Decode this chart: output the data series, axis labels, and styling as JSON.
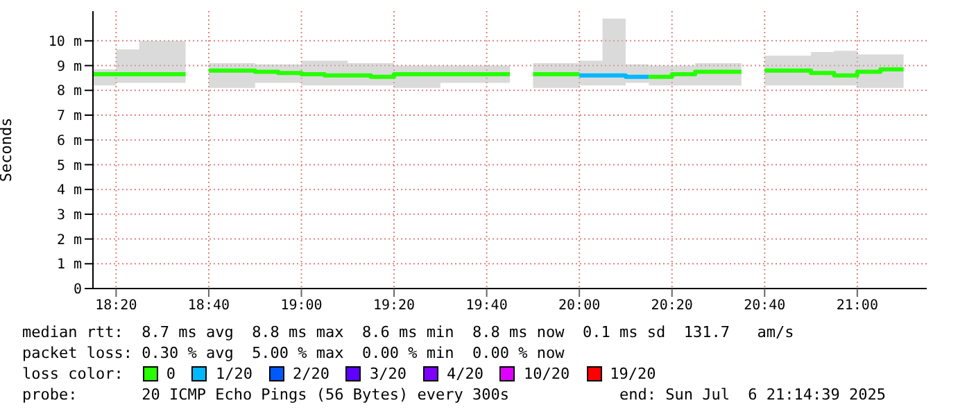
{
  "chart_data": {
    "type": "line",
    "ylabel": "Seconds",
    "legend_title": "loss color:",
    "legend": "bottom",
    "grid": true,
    "xlim": [
      "2025-07-06T18:15",
      "2025-07-06T21:15"
    ],
    "xticks": [
      {
        "value": "2025-07-06T18:20",
        "label": "18:20"
      },
      {
        "value": "2025-07-06T18:40",
        "label": "18:40"
      },
      {
        "value": "2025-07-06T19:00",
        "label": "19:00"
      },
      {
        "value": "2025-07-06T19:20",
        "label": "19:20"
      },
      {
        "value": "2025-07-06T19:40",
        "label": "19:40"
      },
      {
        "value": "2025-07-06T20:00",
        "label": "20:00"
      },
      {
        "value": "2025-07-06T20:20",
        "label": "20:20"
      },
      {
        "value": "2025-07-06T20:40",
        "label": "20:40"
      },
      {
        "value": "2025-07-06T21:00",
        "label": "21:00"
      }
    ],
    "ylim": [
      0,
      11.2
    ],
    "yticks": [
      0,
      {
        "value": 1,
        "label": "1 m"
      },
      {
        "value": 2,
        "label": "2 m"
      },
      {
        "value": 3,
        "label": "3 m"
      },
      {
        "value": 4,
        "label": "4 m"
      },
      {
        "value": 5,
        "label": "5 m"
      },
      {
        "value": 6,
        "label": "6 m"
      },
      {
        "value": 7,
        "label": "7 m"
      },
      {
        "value": 8,
        "label": "8 m"
      },
      {
        "value": 9,
        "label": "9 m"
      },
      {
        "value": 10,
        "label": "10 m"
      }
    ],
    "series": [
      {
        "name": "0",
        "color": "#26ff00",
        "x": [
          "2025-07-06T18:15",
          "2025-07-06T18:20",
          "2025-07-06T18:20",
          "2025-07-06T18:25",
          "2025-07-06T18:25",
          "2025-07-06T18:35"
        ],
        "values": [
          8.65,
          8.65,
          8.65,
          8.65,
          8.65,
          8.65
        ],
        "lower": [
          8.2,
          8.2,
          8.3,
          8.3,
          8.3,
          8.3
        ],
        "upper": [
          8.85,
          8.85,
          9.65,
          9.65,
          10.0,
          10.0
        ]
      },
      {
        "name": "1/20",
        "color": "#00b8ff",
        "x": [
          "2025-07-06T20:00",
          "2025-07-06T20:05",
          "2025-07-06T20:05",
          "2025-07-06T20:10",
          "2025-07-06T20:10",
          "2025-07-06T20:15"
        ],
        "values": [
          8.6,
          8.6,
          8.6,
          8.6,
          8.55,
          8.55
        ],
        "lower": [
          8.2,
          8.2,
          8.2,
          8.2,
          8.3,
          8.3
        ],
        "upper": [
          9.2,
          9.2,
          10.9,
          10.9,
          9.05,
          9.05
        ]
      },
      {
        "name": "2/20",
        "color": "#0059ff"
      },
      {
        "name": "3/20",
        "color": "#5e00ff"
      },
      {
        "name": "4/20",
        "color": "#7e00ff"
      },
      {
        "name": "10/20",
        "color": "#dd00ff"
      },
      {
        "name": "19/20",
        "color": "#ff0000"
      },
      {
        "color": "#26ff00",
        "x": [
          "2025-07-06T18:40",
          "2025-07-06T18:50",
          "2025-07-06T18:50",
          "2025-07-06T18:55",
          "2025-07-06T18:55",
          "2025-07-06T19:00",
          "2025-07-06T19:00",
          "2025-07-06T19:05",
          "2025-07-06T19:05",
          "2025-07-06T19:10",
          "2025-07-06T19:10",
          "2025-07-06T19:15",
          "2025-07-06T19:15",
          "2025-07-06T19:20",
          "2025-07-06T19:20",
          "2025-07-06T19:30",
          "2025-07-06T19:30",
          "2025-07-06T19:45"
        ],
        "values": [
          8.8,
          8.8,
          8.75,
          8.75,
          8.7,
          8.7,
          8.65,
          8.65,
          8.6,
          8.6,
          8.6,
          8.6,
          8.55,
          8.55,
          8.65,
          8.65,
          8.65,
          8.65
        ],
        "lower": [
          8.1,
          8.1,
          8.3,
          8.3,
          8.3,
          8.3,
          8.2,
          8.2,
          8.2,
          8.2,
          8.2,
          8.2,
          8.2,
          8.2,
          8.1,
          8.1,
          8.3,
          8.3
        ],
        "upper": [
          9.1,
          9.1,
          9.05,
          9.05,
          9.05,
          9.05,
          9.2,
          9.2,
          9.2,
          9.2,
          9.1,
          9.1,
          9.1,
          9.1,
          9.0,
          9.0,
          9.0,
          9.0
        ]
      },
      {
        "color": "#26ff00",
        "x": [
          "2025-07-06T19:50",
          "2025-07-06T20:00"
        ],
        "values": [
          8.65,
          8.65
        ],
        "lower": [
          8.1,
          8.1
        ],
        "upper": [
          9.1,
          9.1
        ]
      },
      {
        "color": "#26ff00",
        "x": [
          "2025-07-06T20:15",
          "2025-07-06T20:20",
          "2025-07-06T20:20",
          "2025-07-06T20:25",
          "2025-07-06T20:25",
          "2025-07-06T20:35"
        ],
        "values": [
          8.55,
          8.55,
          8.65,
          8.65,
          8.75,
          8.75
        ],
        "lower": [
          8.2,
          8.2,
          8.2,
          8.2,
          8.2,
          8.2
        ],
        "upper": [
          9.0,
          9.0,
          9.0,
          9.0,
          9.1,
          9.1
        ]
      },
      {
        "color": "#26ff00",
        "x": [
          "2025-07-06T20:40",
          "2025-07-06T20:50",
          "2025-07-06T20:50",
          "2025-07-06T20:55",
          "2025-07-06T20:55",
          "2025-07-06T21:00",
          "2025-07-06T21:00",
          "2025-07-06T21:05",
          "2025-07-06T21:05",
          "2025-07-06T21:10"
        ],
        "values": [
          8.8,
          8.8,
          8.7,
          8.7,
          8.6,
          8.6,
          8.75,
          8.75,
          8.85,
          8.85
        ],
        "lower": [
          8.2,
          8.2,
          8.2,
          8.2,
          8.2,
          8.2,
          8.1,
          8.1,
          8.1,
          8.1
        ],
        "upper": [
          9.4,
          9.4,
          9.55,
          9.55,
          9.6,
          9.6,
          9.45,
          9.45,
          9.45,
          9.45
        ]
      }
    ],
    "annotations": [
      "median rtt:  8.7 ms avg  8.8 ms max  8.6 ms min  8.8 ms now  0.1 ms sd  131.7   am/s",
      "packet loss: 0.30 % avg  5.00 % max  0.00 % min  0.00 % now",
      "probe:       20 ICMP Echo Pings (56 Bytes) every 300s            end: Sun Jul  6 21:14:39 2025"
    ]
  }
}
